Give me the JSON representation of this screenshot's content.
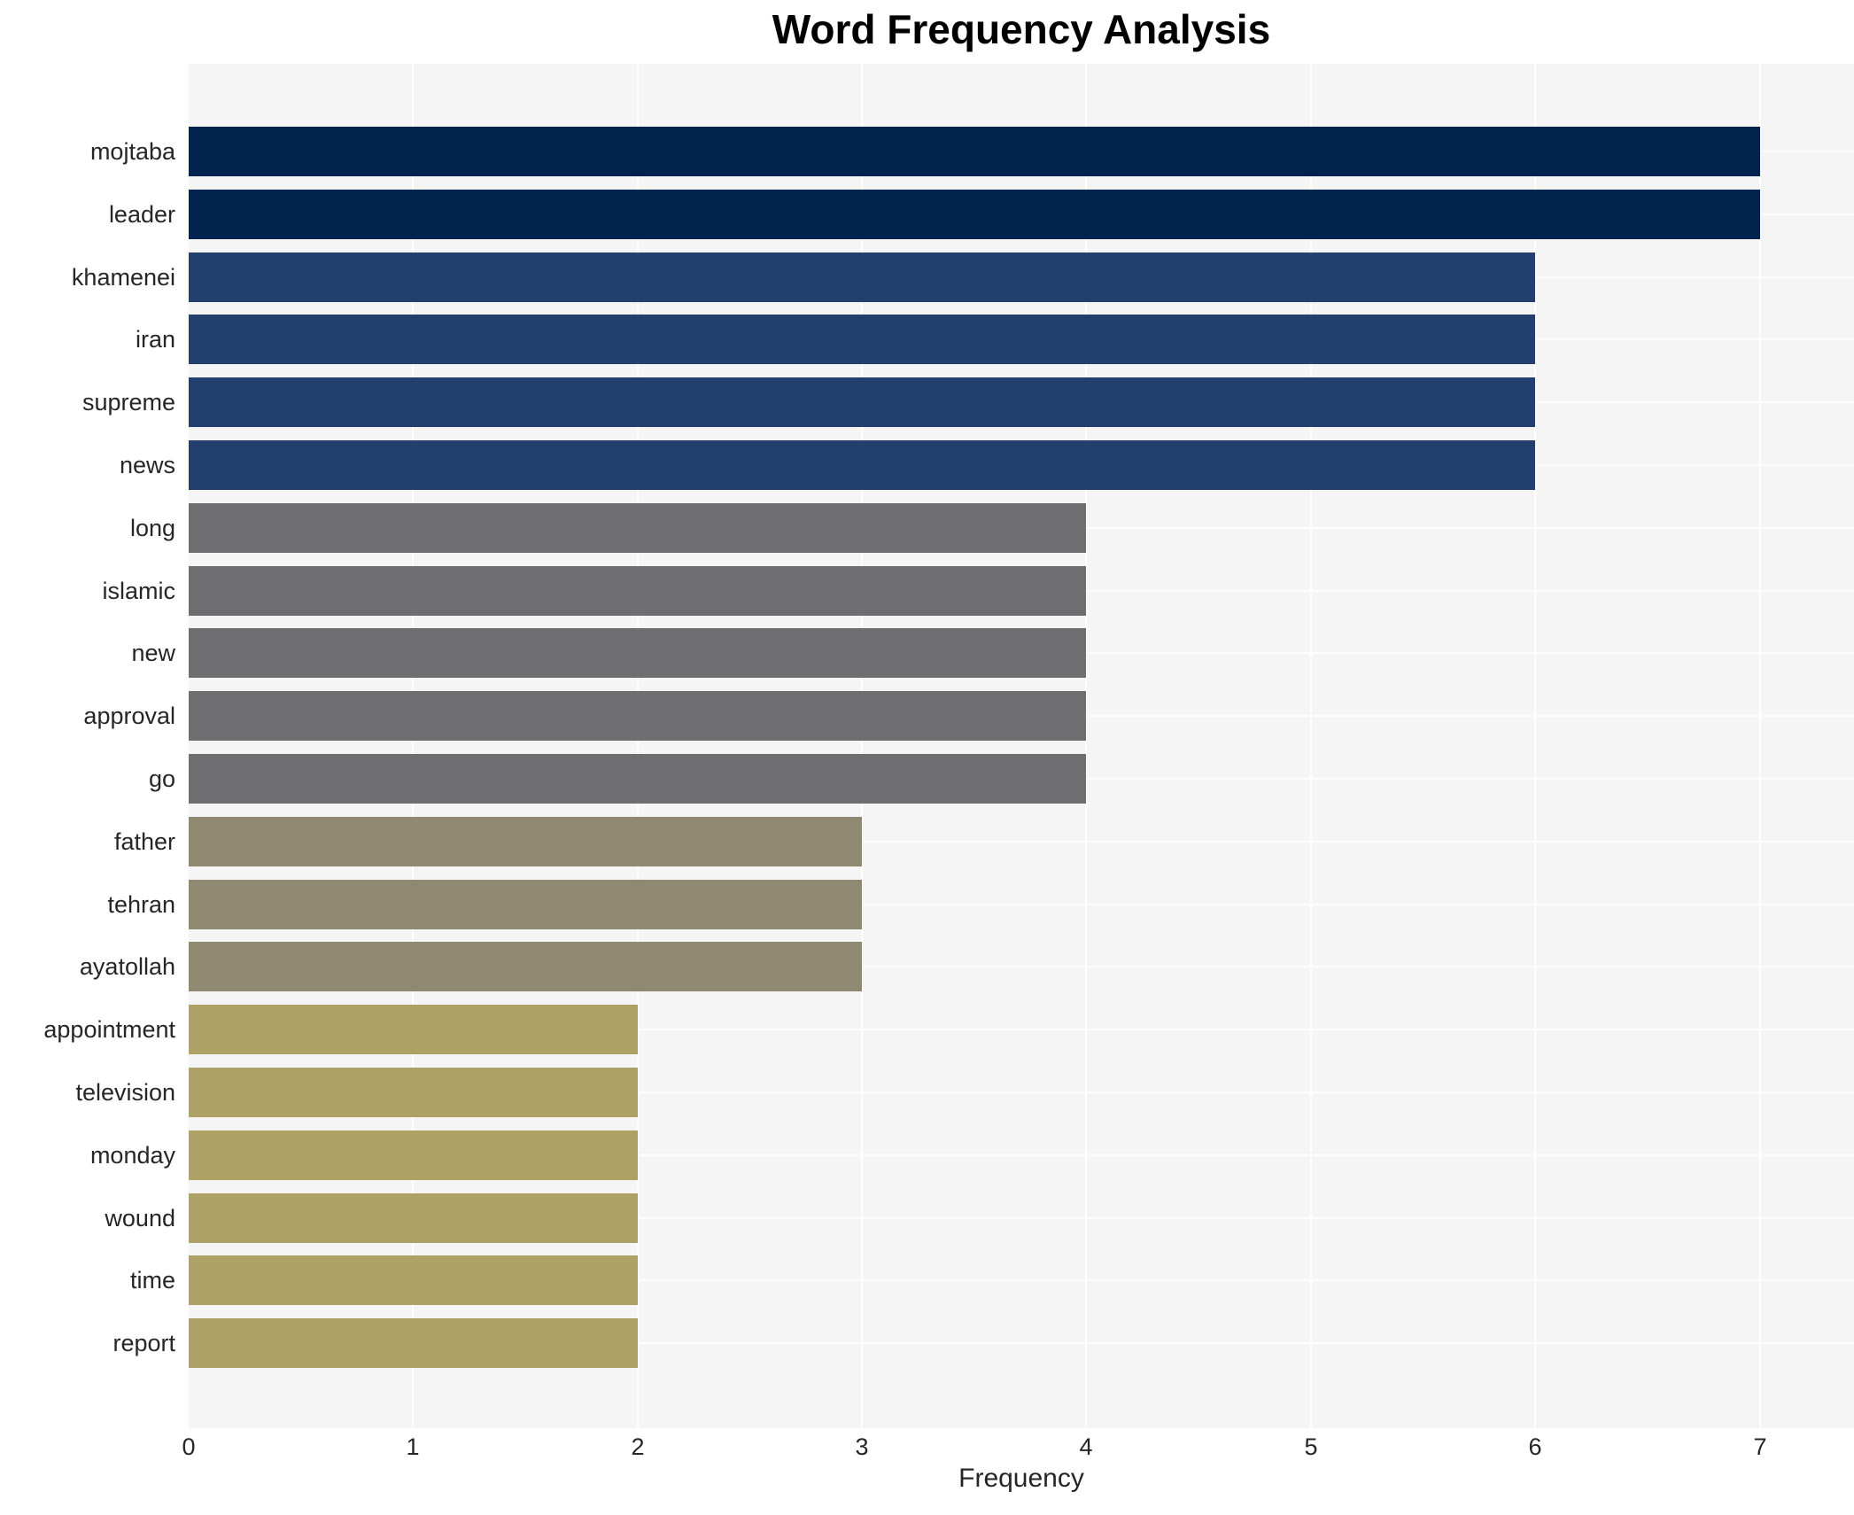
{
  "chart_data": {
    "type": "bar",
    "orientation": "horizontal",
    "title": "Word Frequency Analysis",
    "xlabel": "Frequency",
    "ylabel": "",
    "categories": [
      "mojtaba",
      "leader",
      "khamenei",
      "iran",
      "supreme",
      "news",
      "long",
      "islamic",
      "new",
      "approval",
      "go",
      "father",
      "tehran",
      "ayatollah",
      "appointment",
      "television",
      "monday",
      "wound",
      "time",
      "report"
    ],
    "values": [
      7,
      7,
      6,
      6,
      6,
      6,
      4,
      4,
      4,
      4,
      4,
      3,
      3,
      3,
      2,
      2,
      2,
      2,
      2,
      2
    ],
    "bar_colors": [
      "#02234e",
      "#02234e",
      "#233f6e",
      "#233f6e",
      "#233f6e",
      "#233f6e",
      "#6e6e70",
      "#6e6e70",
      "#6e6e70",
      "#6e6e70",
      "#6e6e70",
      "#908972",
      "#908972",
      "#908972",
      "#ada166",
      "#ada166",
      "#ada166",
      "#ada166",
      "#ada166",
      "#ada166"
    ],
    "x_ticks": [
      0,
      1,
      2,
      3,
      4,
      5,
      6,
      7
    ],
    "xlim": [
      0,
      7.42
    ],
    "grid": true,
    "legend": false
  },
  "colors": {
    "plot_background": "#f5f5f6",
    "gridline": "#ffffff",
    "tick_text": "#262626",
    "title_text": "#000000",
    "freq_7": "#02234e",
    "freq_6": "#233f6e",
    "freq_4": "#6e6e70",
    "freq_3": "#908972",
    "freq_2": "#ada166"
  }
}
